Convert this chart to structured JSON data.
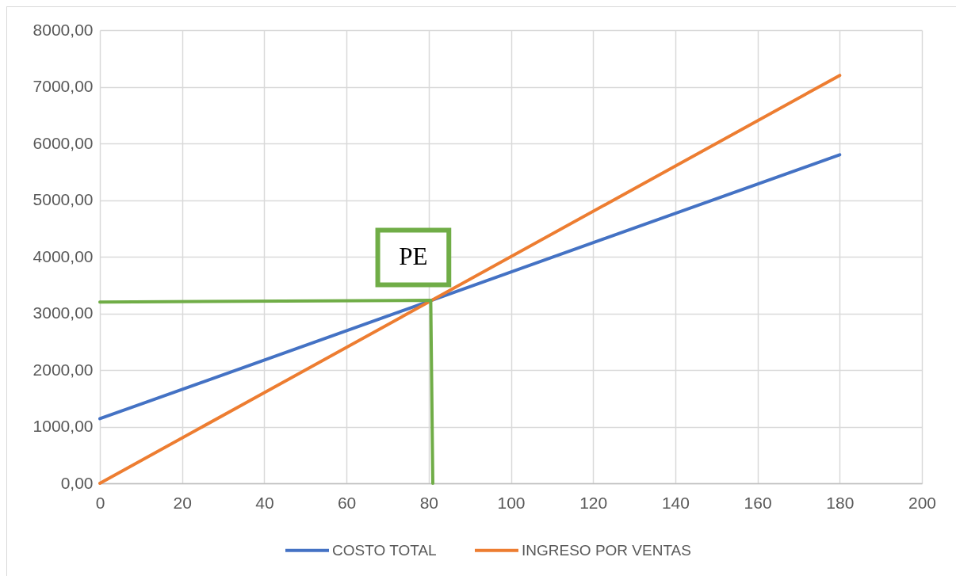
{
  "chart_data": {
    "type": "line",
    "xlim": [
      0,
      200
    ],
    "xticks": [
      0,
      20,
      40,
      60,
      80,
      100,
      120,
      140,
      160,
      180,
      200
    ],
    "ylim": [
      0,
      8000
    ],
    "yticks": [
      {
        "value": 0,
        "label": "0,00"
      },
      {
        "value": 1000,
        "label": "1000,00"
      },
      {
        "value": 2000,
        "label": "2000,00"
      },
      {
        "value": 3000,
        "label": "3000,00"
      },
      {
        "value": 4000,
        "label": "4000,00"
      },
      {
        "value": 5000,
        "label": "5000,00"
      },
      {
        "value": 6000,
        "label": "6000,00"
      },
      {
        "value": 7000,
        "label": "7000,00"
      },
      {
        "value": 8000,
        "label": "8000,00"
      }
    ],
    "series": [
      {
        "name": "COSTO TOTAL",
        "color": "#4472c4",
        "x": [
          0,
          180
        ],
        "values": [
          1140,
          5800
        ]
      },
      {
        "name": "INGRESO POR VENTAS",
        "color": "#ed7d31",
        "x": [
          0,
          180
        ],
        "values": [
          0,
          7200
        ]
      },
      {
        "type": "line",
        "color": "#70ad47",
        "x": [
          0,
          80.5,
          81
        ],
        "values": [
          3200,
          3230,
          0
        ]
      }
    ],
    "annotations": [
      {
        "text": "PE",
        "x": 80.5,
        "y": 3230
      }
    ],
    "grid": true,
    "legend": "bottom"
  }
}
